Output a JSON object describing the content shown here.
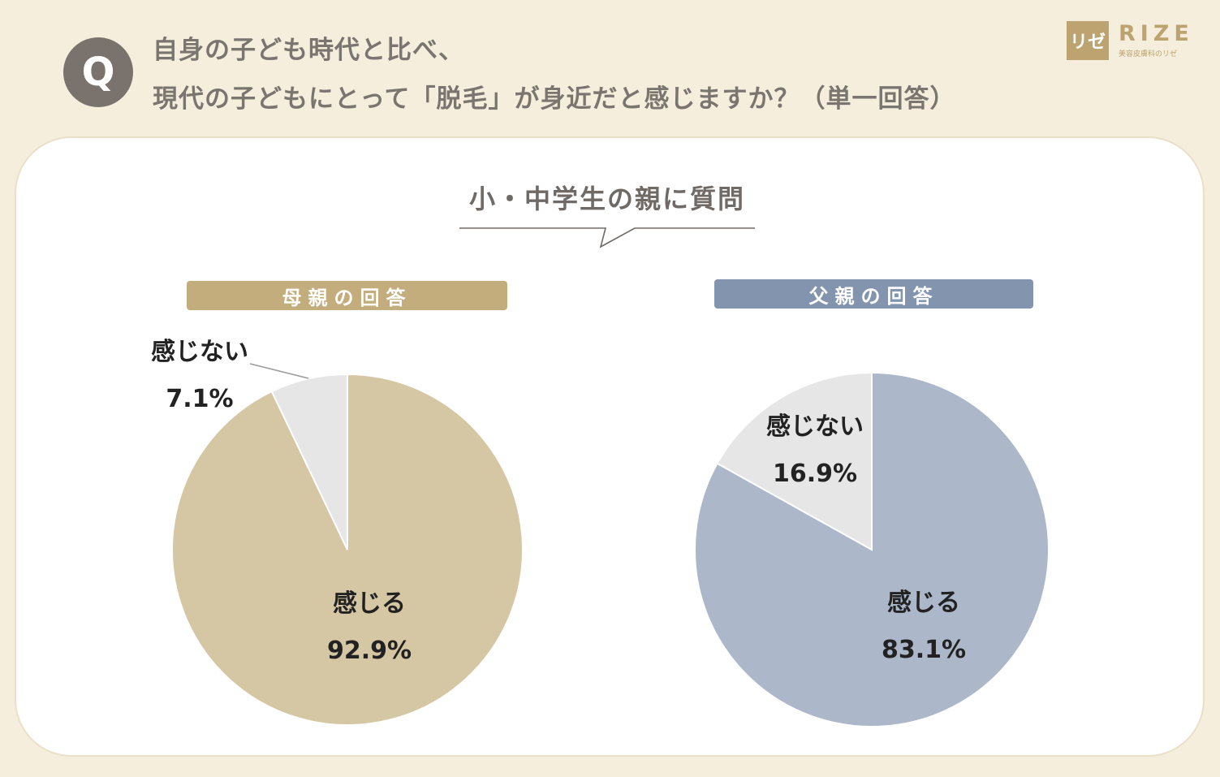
{
  "header": {
    "badge": "Q",
    "question_line1": "自身の子ども時代と比べ、",
    "question_line2": "現代の子どもにとって「脱毛」が身近だと感じますか？（単一回答）"
  },
  "logo": {
    "mark": "リゼ",
    "name": "RIZE",
    "tagline": "美容皮膚科のリゼ",
    "color": "#bca36f"
  },
  "subtitle": "小・中学生の親に質問",
  "colors": {
    "background": "#f6eedd",
    "mother_yes": "#d6c7a4",
    "father_yes": "#acb7ca",
    "no": "#e6e6e6",
    "mother_header": "#c4ad7d",
    "father_header": "#8395ae"
  },
  "chart_data": [
    {
      "type": "pie",
      "title": "母親の回答",
      "slices": [
        {
          "label": "感じる",
          "value": 92.9,
          "display": "92.9%"
        },
        {
          "label": "感じない",
          "value": 7.1,
          "display": "7.1%"
        }
      ]
    },
    {
      "type": "pie",
      "title": "父親の回答",
      "slices": [
        {
          "label": "感じる",
          "value": 83.1,
          "display": "83.1%"
        },
        {
          "label": "感じない",
          "value": 16.9,
          "display": "16.9%"
        }
      ]
    }
  ]
}
